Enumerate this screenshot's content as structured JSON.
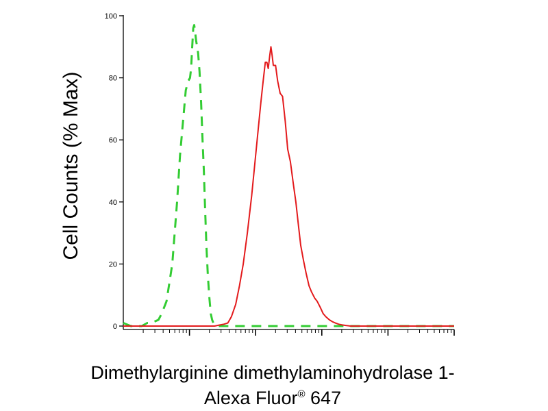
{
  "chart_data": {
    "type": "line",
    "title": "",
    "ylabel": "Cell Counts (% Max)",
    "xlabel_line1": "Dimethylarginine dimethylaminohydrolase 1-",
    "xlabel_line2": "Alexa Fluor",
    "xlabel_sup": "®",
    "xlabel_suffix": " 647",
    "x_scale": "log",
    "xlim": [
      0.01,
      1000
    ],
    "ylim": [
      0,
      100
    ],
    "y_ticks": [
      0,
      20,
      40,
      60,
      80,
      100
    ],
    "y_tick_labels": [
      "0",
      "20",
      "40",
      "60",
      "80",
      "100"
    ],
    "grid": false,
    "legend": "none",
    "series": [
      {
        "color": "#33cc33",
        "style": "dashed",
        "x": [
          0.01,
          0.013,
          0.016,
          0.019,
          0.023,
          0.026,
          0.03,
          0.034,
          0.038,
          0.045,
          0.055,
          0.065,
          0.072,
          0.08,
          0.088,
          0.096,
          0.102,
          0.106,
          0.11,
          0.114,
          0.118,
          0.12,
          0.126,
          0.135,
          0.142,
          0.15,
          0.157,
          0.165,
          0.172,
          0.18,
          0.19,
          0.2,
          0.21,
          0.22,
          0.23,
          0.24,
          0.26,
          0.3,
          0.4,
          1,
          10,
          100,
          1000
        ],
        "y": [
          1,
          0,
          0,
          0,
          1,
          1,
          1.5,
          2,
          4,
          8,
          20,
          40,
          55,
          66,
          76,
          79,
          80,
          83,
          90,
          96,
          97,
          96,
          92,
          88,
          82,
          72,
          61,
          50,
          38,
          26,
          16,
          9,
          4,
          2,
          1,
          0.5,
          0,
          0,
          0,
          0,
          0,
          0,
          0
        ]
      },
      {
        "color": "#e31a1c",
        "style": "solid",
        "x": [
          0.01,
          0.1,
          0.15,
          0.2,
          0.24,
          0.28,
          0.33,
          0.38,
          0.43,
          0.5,
          0.57,
          0.65,
          0.75,
          0.87,
          1.0,
          1.1,
          1.2,
          1.3,
          1.4,
          1.48,
          1.55,
          1.63,
          1.7,
          1.78,
          1.85,
          2.0,
          2.15,
          2.35,
          2.55,
          2.8,
          3.05,
          3.35,
          3.7,
          4.05,
          4.4,
          4.8,
          5.3,
          5.8,
          6.4,
          7.0,
          7.8,
          8.5,
          9.5,
          10.5,
          11.5,
          13,
          14.5,
          16,
          18,
          20,
          23,
          27,
          32,
          40,
          55,
          80,
          120,
          200,
          400,
          1000
        ],
        "y": [
          0,
          0,
          0,
          0,
          0,
          0.3,
          0.6,
          1,
          3,
          7,
          13,
          20,
          30,
          42,
          55,
          64,
          72,
          79,
          85,
          85,
          83,
          87,
          90,
          87,
          84,
          84,
          79,
          75,
          74,
          66,
          57,
          53,
          46,
          40,
          33,
          26,
          21,
          17,
          13,
          11,
          9,
          8,
          6,
          4,
          3,
          2,
          1.4,
          1,
          0.6,
          0.4,
          0.2,
          0,
          0,
          0,
          0,
          0,
          0,
          0,
          0,
          0
        ]
      }
    ]
  }
}
